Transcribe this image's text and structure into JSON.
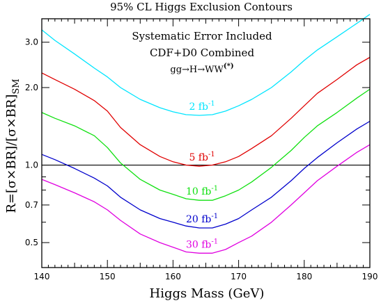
{
  "chart_data": {
    "type": "line",
    "title": "95% CL Higgs Exclusion Contours",
    "xlabel": "Higgs Mass (GeV)",
    "ylabel": "R=[σ×BR]/[σ×BR]SM",
    "ylabel_main": "R=[σ×BR]/[σ×BR]",
    "ylabel_sub": "SM",
    "xlim": [
      140,
      190
    ],
    "ylim": [
      0.4,
      3.7
    ],
    "yscale": "log",
    "x_ticks": [
      140,
      150,
      160,
      170,
      180,
      190
    ],
    "x_tick_labels": [
      "140",
      "150",
      "160",
      "170",
      "180",
      "190"
    ],
    "y_ticks": [
      0.5,
      0.7,
      1.0,
      2.0,
      3.0
    ],
    "y_tick_labels": [
      "0.5",
      "0.7",
      "1.0",
      "2.0",
      "3.0"
    ],
    "reference_line": 1.0,
    "annotations": [
      "Systematic Error Included",
      "CDF+D0 Combined",
      "gg→H→WW(*)"
    ],
    "annotation_reaction": "gg→H→WW",
    "annotation_reaction_sup": "(*)",
    "series": [
      {
        "name": "2 fb-1",
        "label_text": "2 fb",
        "label_sup": "-1",
        "color": "#00e5ff",
        "x": [
          140,
          142,
          145,
          148,
          150,
          152,
          155,
          158,
          160,
          162,
          164,
          166,
          168,
          170,
          172,
          175,
          178,
          180,
          182,
          185,
          188,
          190
        ],
        "y": [
          3.35,
          3.05,
          2.7,
          2.38,
          2.2,
          2.0,
          1.8,
          1.67,
          1.61,
          1.57,
          1.56,
          1.57,
          1.62,
          1.7,
          1.8,
          2.0,
          2.3,
          2.55,
          2.8,
          3.15,
          3.55,
          3.85
        ]
      },
      {
        "name": "5 fb-1",
        "label_text": "5 fb",
        "label_sup": "-1",
        "color": "#e00000",
        "x": [
          140,
          142,
          145,
          148,
          150,
          152,
          155,
          158,
          160,
          162,
          164,
          166,
          168,
          170,
          172,
          175,
          178,
          180,
          182,
          185,
          188,
          190
        ],
        "y": [
          2.28,
          2.15,
          1.97,
          1.78,
          1.62,
          1.4,
          1.2,
          1.08,
          1.03,
          1.0,
          0.99,
          1.0,
          1.03,
          1.08,
          1.16,
          1.3,
          1.52,
          1.7,
          1.9,
          2.15,
          2.45,
          2.62
        ]
      },
      {
        "name": "10 fb-1",
        "label_text": "10 fb",
        "label_sup": "-1",
        "color": "#10e010",
        "x": [
          140,
          142,
          145,
          148,
          150,
          152,
          155,
          158,
          160,
          162,
          164,
          166,
          168,
          170,
          172,
          175,
          178,
          180,
          182,
          185,
          188,
          190
        ],
        "y": [
          1.6,
          1.52,
          1.42,
          1.3,
          1.17,
          1.02,
          0.88,
          0.8,
          0.77,
          0.74,
          0.73,
          0.73,
          0.76,
          0.8,
          0.86,
          0.98,
          1.14,
          1.28,
          1.42,
          1.6,
          1.82,
          1.97
        ]
      },
      {
        "name": "20 fb-1",
        "label_text": "20 fb",
        "label_sup": "-1",
        "color": "#0000cc",
        "x": [
          140,
          142,
          145,
          148,
          150,
          152,
          155,
          158,
          160,
          162,
          164,
          166,
          168,
          170,
          172,
          175,
          178,
          180,
          182,
          185,
          188,
          190
        ],
        "y": [
          1.1,
          1.05,
          0.97,
          0.89,
          0.83,
          0.75,
          0.67,
          0.62,
          0.6,
          0.58,
          0.57,
          0.57,
          0.59,
          0.62,
          0.67,
          0.75,
          0.87,
          0.97,
          1.07,
          1.22,
          1.38,
          1.48
        ]
      },
      {
        "name": "30 fb-1",
        "label_text": "30 fb",
        "label_sup": "-1",
        "color": "#e000e0",
        "x": [
          140,
          142,
          145,
          148,
          150,
          152,
          155,
          158,
          160,
          162,
          164,
          166,
          168,
          170,
          172,
          175,
          178,
          180,
          182,
          185,
          188,
          190
        ],
        "y": [
          0.88,
          0.84,
          0.78,
          0.72,
          0.67,
          0.61,
          0.54,
          0.5,
          0.48,
          0.46,
          0.455,
          0.455,
          0.47,
          0.5,
          0.53,
          0.6,
          0.7,
          0.78,
          0.87,
          0.99,
          1.12,
          1.2
        ]
      }
    ]
  }
}
